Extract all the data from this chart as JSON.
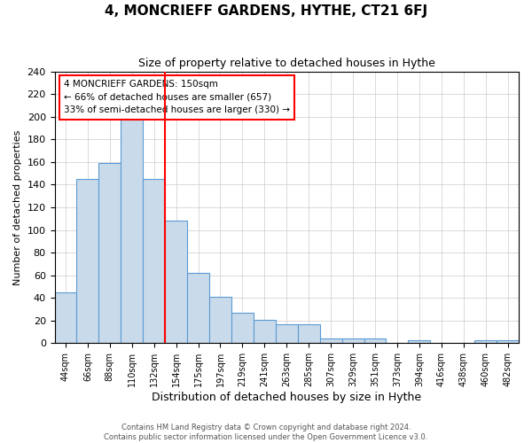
{
  "title": "4, MONCRIEFF GARDENS, HYTHE, CT21 6FJ",
  "subtitle": "Size of property relative to detached houses in Hythe",
  "xlabel": "Distribution of detached houses by size in Hythe",
  "ylabel": "Number of detached properties",
  "bin_labels": [
    "44sqm",
    "66sqm",
    "88sqm",
    "110sqm",
    "132sqm",
    "154sqm",
    "175sqm",
    "197sqm",
    "219sqm",
    "241sqm",
    "263sqm",
    "285sqm",
    "307sqm",
    "329sqm",
    "351sqm",
    "373sqm",
    "394sqm",
    "416sqm",
    "438sqm",
    "460sqm",
    "482sqm"
  ],
  "bar_heights": [
    45,
    145,
    159,
    201,
    145,
    108,
    62,
    41,
    27,
    21,
    17,
    17,
    4,
    4,
    4,
    0,
    3,
    0,
    0,
    3,
    3
  ],
  "bar_color": "#c9daea",
  "bar_edge_color": "#5b9bd5",
  "vline_pos": 4.5,
  "vline_color": "red",
  "annotation_text": "4 MONCRIEFF GARDENS: 150sqm\n← 66% of detached houses are smaller (657)\n33% of semi-detached houses are larger (330) →",
  "annotation_box_color": "white",
  "annotation_box_edge_color": "red",
  "ylim": [
    0,
    240
  ],
  "yticks": [
    0,
    20,
    40,
    60,
    80,
    100,
    120,
    140,
    160,
    180,
    200,
    220,
    240
  ],
  "grid_color": "#cccccc",
  "footer_line1": "Contains HM Land Registry data © Crown copyright and database right 2024.",
  "footer_line2": "Contains public sector information licensed under the Open Government Licence v3.0."
}
